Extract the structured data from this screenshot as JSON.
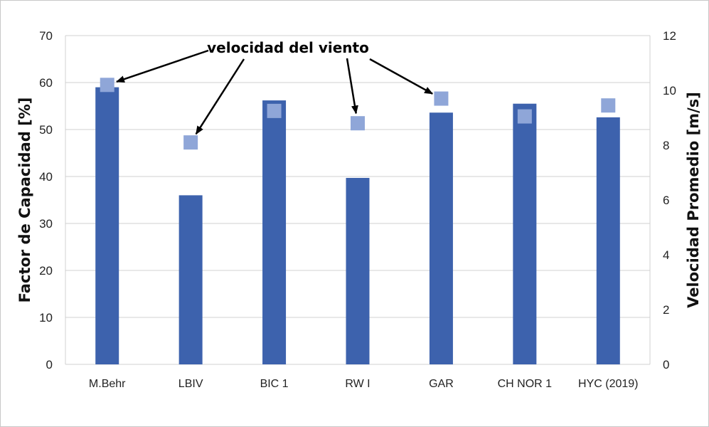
{
  "chart_data": {
    "type": "bar",
    "categories": [
      "M.Behr",
      "LBIV",
      "BIC 1",
      "RW I",
      "GAR",
      "CH NOR 1",
      "HYC (2019)"
    ],
    "series": [
      {
        "name": "",
        "axis": "left",
        "kind": "bar",
        "color": "#3d62ad",
        "values": [
          59,
          36,
          56.2,
          39.7,
          53.6,
          55.5,
          52.6
        ]
      },
      {
        "name": "",
        "axis": "right",
        "kind": "marker",
        "color": "#8fa6d8",
        "values": [
          10.2,
          8.1,
          9.25,
          8.8,
          9.7,
          9.05,
          9.45
        ]
      }
    ],
    "ylabel": "Factor de Capacidad [%]",
    "ylim": [
      0,
      70
    ],
    "yticks": [
      "0",
      "10",
      "20",
      "30",
      "40",
      "50",
      "60",
      "70"
    ],
    "y2label": "Velocidad Promedio [m/s]",
    "y2lim": [
      0,
      12
    ],
    "y2ticks": [
      "0",
      "2",
      "4",
      "6",
      "8",
      "10",
      "12"
    ],
    "grid": true,
    "annotation": {
      "text": "velocidad del viento",
      "targets": [
        "M.Behr",
        "LBIV",
        "RW I",
        "GAR"
      ]
    }
  }
}
